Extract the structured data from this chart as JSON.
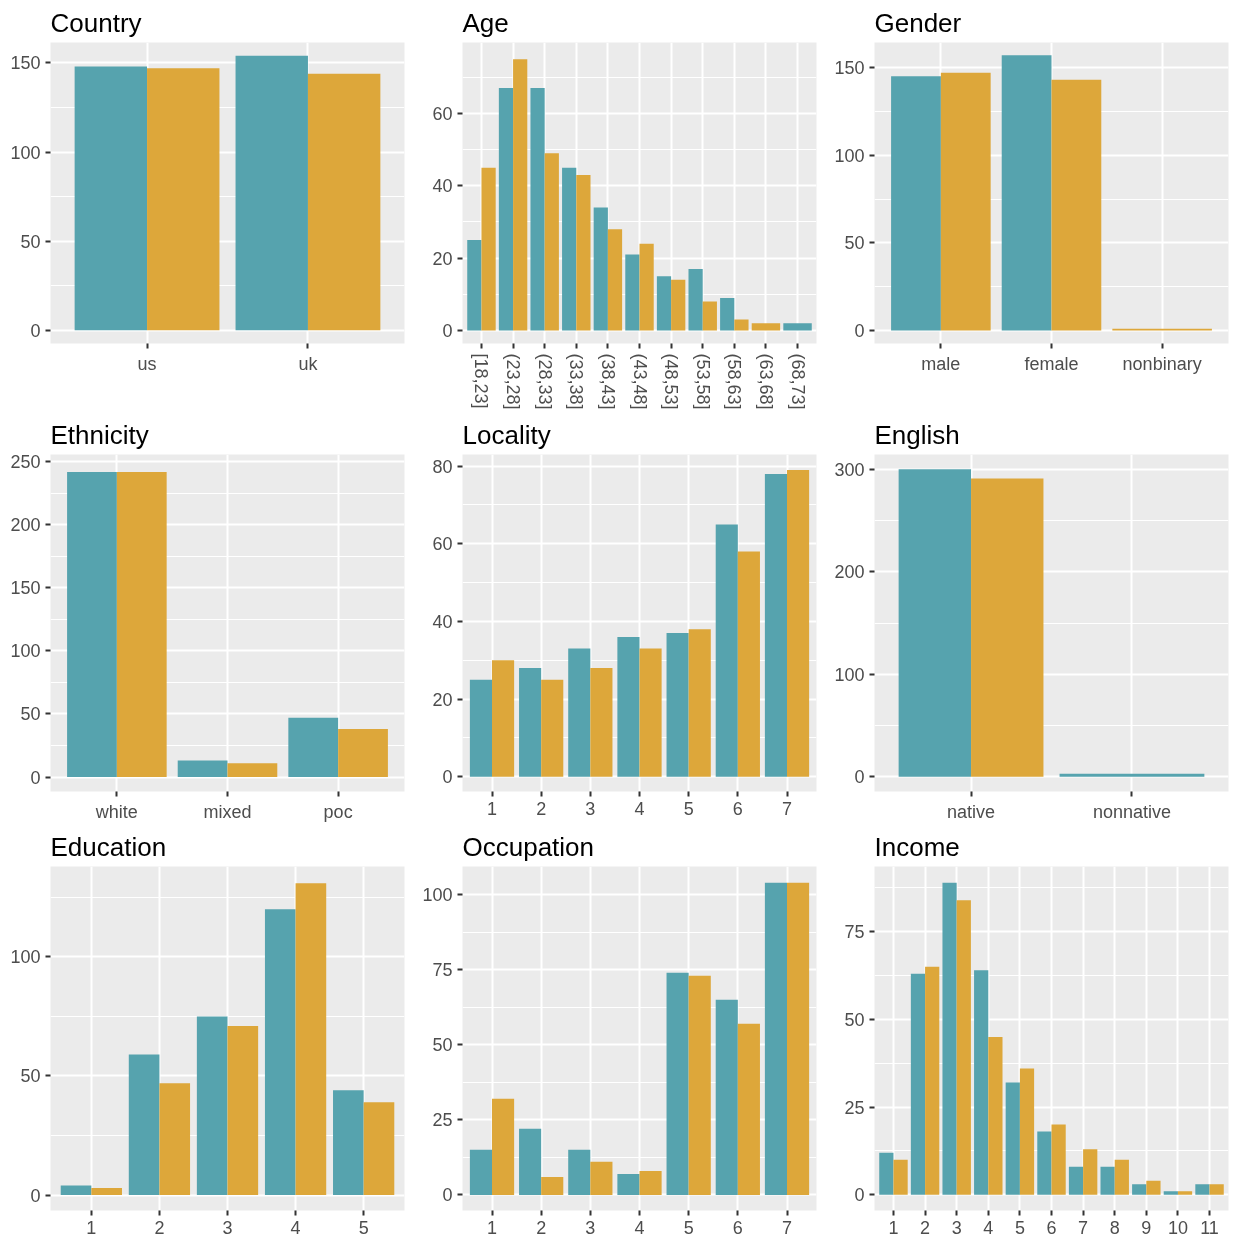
{
  "chart_data": [
    {
      "type": "bar",
      "title": "Country",
      "categories": [
        "us",
        "uk"
      ],
      "series": [
        {
          "color": "#56a3ae",
          "values": [
            148,
            154
          ]
        },
        {
          "color": "#dda73a",
          "values": [
            147,
            144
          ]
        }
      ],
      "ylim": [
        -7.5,
        161.5
      ],
      "yticks": [
        0,
        50,
        100,
        150
      ],
      "grid": true
    },
    {
      "type": "bar",
      "title": "Age",
      "categories": [
        "[18,23]",
        "(23,28]",
        "(28,33]",
        "(33,38]",
        "(38,43]",
        "(43,48]",
        "(48,53]",
        "(53,58]",
        "(58,63]",
        "(63,68]",
        "(68,73]"
      ],
      "series": [
        {
          "color": "#56a3ae",
          "values": [
            25,
            67,
            67,
            45,
            34,
            21,
            15,
            17,
            9,
            null,
            2
          ]
        },
        {
          "color": "#dda73a",
          "values": [
            45,
            75,
            49,
            43,
            28,
            24,
            14,
            8,
            3,
            2,
            null
          ]
        }
      ],
      "ylim": [
        -3.6,
        79.6
      ],
      "yticks": [
        0,
        20,
        40,
        60
      ],
      "grid": true
    },
    {
      "type": "bar",
      "title": "Gender",
      "categories": [
        "male",
        "female",
        "nonbinary"
      ],
      "series": [
        {
          "color": "#56a3ae",
          "values": [
            145,
            157,
            null
          ]
        },
        {
          "color": "#dda73a",
          "values": [
            147,
            143,
            1
          ]
        }
      ],
      "ylim": [
        -7.4,
        164.3
      ],
      "yticks": [
        0,
        50,
        100,
        150
      ],
      "grid": true
    },
    {
      "type": "bar",
      "title": "Ethnicity",
      "categories": [
        "white",
        "mixed",
        "poc"
      ],
      "series": [
        {
          "color": "#56a3ae",
          "values": [
            242,
            13,
            47
          ]
        },
        {
          "color": "#dda73a",
          "values": [
            242,
            11,
            38
          ]
        }
      ],
      "ylim": [
        -11.5,
        255.8
      ],
      "yticks": [
        0,
        50,
        100,
        150,
        200,
        250
      ],
      "grid": true
    },
    {
      "type": "bar",
      "title": "Locality",
      "categories": [
        "1",
        "2",
        "3",
        "4",
        "5",
        "6",
        "7"
      ],
      "series": [
        {
          "color": "#56a3ae",
          "values": [
            25,
            28,
            33,
            36,
            37,
            65,
            78
          ]
        },
        {
          "color": "#dda73a",
          "values": [
            30,
            25,
            28,
            33,
            38,
            58,
            79
          ]
        }
      ],
      "ylim": [
        -3.8,
        83
      ],
      "yticks": [
        0,
        20,
        40,
        60,
        80
      ],
      "grid": true
    },
    {
      "type": "bar",
      "title": "English",
      "categories": [
        "native",
        "nonnative"
      ],
      "series": [
        {
          "color": "#56a3ae",
          "values": [
            300,
            3
          ]
        },
        {
          "color": "#dda73a",
          "values": [
            291,
            null
          ]
        }
      ],
      "ylim": [
        -14.3,
        314.3
      ],
      "yticks": [
        0,
        100,
        200,
        300
      ],
      "grid": true
    },
    {
      "type": "bar",
      "title": "Education",
      "categories": [
        "1",
        "2",
        "3",
        "4",
        "5"
      ],
      "series": [
        {
          "color": "#56a3ae",
          "values": [
            4,
            59,
            75,
            120,
            44
          ]
        },
        {
          "color": "#dda73a",
          "values": [
            3,
            47,
            71,
            131,
            39
          ]
        }
      ],
      "ylim": [
        -6.5,
        138
      ],
      "yticks": [
        0,
        50,
        100
      ],
      "grid": true
    },
    {
      "type": "bar",
      "title": "Occupation",
      "categories": [
        "1",
        "2",
        "3",
        "4",
        "5",
        "6",
        "7"
      ],
      "series": [
        {
          "color": "#56a3ae",
          "values": [
            15,
            22,
            15,
            7,
            74,
            65,
            104
          ]
        },
        {
          "color": "#dda73a",
          "values": [
            32,
            6,
            11,
            8,
            73,
            57,
            104
          ]
        }
      ],
      "ylim": [
        -5.2,
        109.4
      ],
      "yticks": [
        0,
        25,
        50,
        75,
        100
      ],
      "grid": true
    },
    {
      "type": "bar",
      "title": "Income",
      "categories": [
        "1",
        "2",
        "3",
        "4",
        "5",
        "6",
        "7",
        "8",
        "9",
        "10",
        "11"
      ],
      "series": [
        {
          "color": "#56a3ae",
          "values": [
            12,
            63,
            89,
            64,
            32,
            18,
            8,
            8,
            3,
            1,
            3
          ]
        },
        {
          "color": "#dda73a",
          "values": [
            10,
            65,
            84,
            45,
            36,
            20,
            13,
            10,
            4,
            1,
            3
          ]
        }
      ],
      "ylim": [
        -4.5,
        93.6
      ],
      "yticks": [
        0,
        25,
        50,
        75
      ],
      "grid": true
    }
  ]
}
